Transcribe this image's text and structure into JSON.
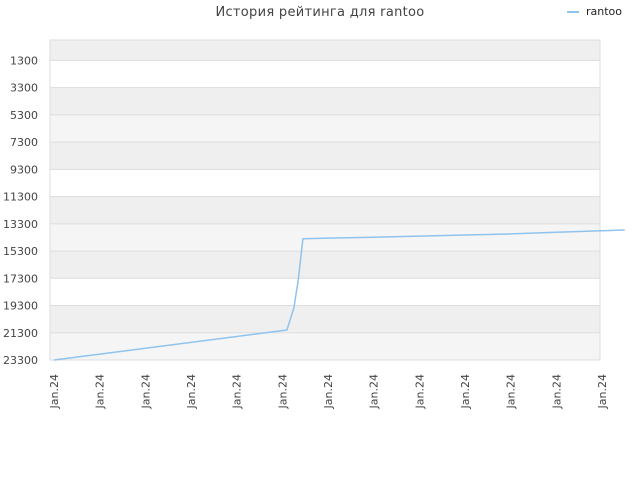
{
  "chart_data": {
    "type": "line",
    "title": "История рейтинга для rantoo",
    "xlabel": "",
    "ylabel": "",
    "y_inverted": true,
    "ylim": [
      23300,
      -200
    ],
    "yticks": [
      1300,
      3300,
      5300,
      7300,
      9300,
      11300,
      13300,
      15300,
      17300,
      19300,
      21300,
      23300
    ],
    "xticks": [
      "Jan.24",
      "Jan.24",
      "Jan.24",
      "Jan.24",
      "Jan.24",
      "Jan.24",
      "Jan.24",
      "Jan.24",
      "Jan.24",
      "Jan.24",
      "Jan.24",
      "Jan.24",
      "Jan.24"
    ],
    "grid": true,
    "legend_position": "top-right",
    "series": [
      {
        "name": "rantoo",
        "color": "#8fc3ee",
        "x": [
          0,
          5.1,
          5.25,
          5.35,
          5.45,
          6,
          7,
          8,
          9,
          10,
          11,
          12.5
        ],
        "y": [
          23300,
          21100,
          19500,
          17400,
          14400,
          14350,
          14280,
          14200,
          14120,
          14040,
          13920,
          13750
        ]
      }
    ]
  }
}
